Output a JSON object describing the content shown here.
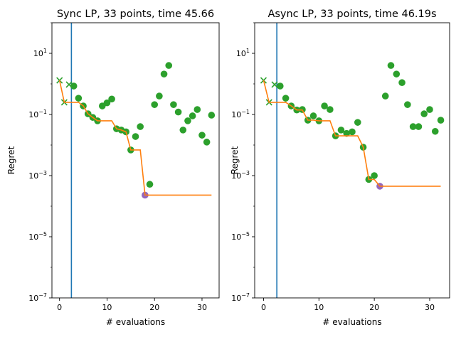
{
  "chart_data": [
    {
      "type": "scatter",
      "title": "Sync LP, 33 points, time 45.66",
      "xlabel": "# evaluations",
      "ylabel": "Regret",
      "yscale": "log",
      "xlim": [
        -1.6,
        33.6
      ],
      "ylim": [
        1e-07,
        100
      ],
      "xticks": [
        "0",
        "10",
        "20",
        "30"
      ],
      "xtick_values": [
        0,
        10,
        20,
        30
      ],
      "yticks": [
        {
          "base": "10",
          "exp": "1",
          "value": 10
        },
        {
          "base": "10",
          "exp": "−1",
          "value": 0.1
        },
        {
          "base": "10",
          "exp": "−3",
          "value": 0.001
        },
        {
          "base": "10",
          "exp": "−5",
          "value": 1e-05
        },
        {
          "base": "10",
          "exp": "−7",
          "value": 1e-07
        }
      ],
      "vline_x": 2.5,
      "initial_points": 3,
      "best_index": 18,
      "x": [
        0,
        1,
        2,
        3,
        4,
        5,
        6,
        7,
        8,
        9,
        10,
        11,
        12,
        13,
        14,
        15,
        16,
        17,
        18,
        19,
        20,
        21,
        22,
        23,
        24,
        25,
        26,
        27,
        28,
        29,
        30,
        31,
        32
      ],
      "y": [
        1.3,
        0.25,
        0.95,
        0.85,
        0.34,
        0.19,
        0.105,
        0.08,
        0.062,
        0.19,
        0.24,
        0.32,
        0.034,
        0.031,
        0.027,
        0.0069,
        0.019,
        0.04,
        0.00023,
        0.00052,
        0.21,
        0.4,
        2.1,
        4.0,
        0.21,
        0.12,
        0.031,
        0.062,
        0.09,
        0.145,
        0.021,
        0.0125,
        0.095
      ]
    },
    {
      "type": "scatter",
      "title": "Async LP, 33 points, time 46.19s",
      "xlabel": "# evaluations",
      "ylabel": "Regret",
      "yscale": "log",
      "xlim": [
        -1.6,
        33.6
      ],
      "ylim": [
        1e-07,
        100
      ],
      "xticks": [
        "0",
        "10",
        "20",
        "30"
      ],
      "xtick_values": [
        0,
        10,
        20,
        30
      ],
      "yticks": [
        {
          "base": "10",
          "exp": "1",
          "value": 10
        },
        {
          "base": "10",
          "exp": "−1",
          "value": 0.1
        },
        {
          "base": "10",
          "exp": "−3",
          "value": 0.001
        },
        {
          "base": "10",
          "exp": "−5",
          "value": 1e-05
        },
        {
          "base": "10",
          "exp": "−7",
          "value": 1e-07
        }
      ],
      "vline_x": 2.4,
      "initial_points": 3,
      "best_index": 21,
      "x": [
        0,
        1,
        2,
        3,
        4,
        5,
        6,
        7,
        8,
        9,
        10,
        11,
        12,
        13,
        14,
        15,
        16,
        17,
        18,
        19,
        20,
        21,
        22,
        23,
        24,
        25,
        26,
        27,
        28,
        29,
        30,
        31,
        32
      ],
      "y": [
        1.3,
        0.25,
        0.95,
        0.85,
        0.34,
        0.19,
        0.14,
        0.145,
        0.065,
        0.09,
        0.062,
        0.19,
        0.145,
        0.02,
        0.031,
        0.024,
        0.027,
        0.055,
        0.0085,
        0.00075,
        0.001,
        0.00045,
        0.4,
        4.0,
        2.1,
        1.1,
        0.21,
        0.04,
        0.04,
        0.105,
        0.145,
        0.028,
        0.065
      ]
    }
  ],
  "colors": {
    "points": "#2ca02c",
    "best_line": "#ff7f0e",
    "vline": "#1f77b4",
    "best_point": "#9467bd"
  }
}
